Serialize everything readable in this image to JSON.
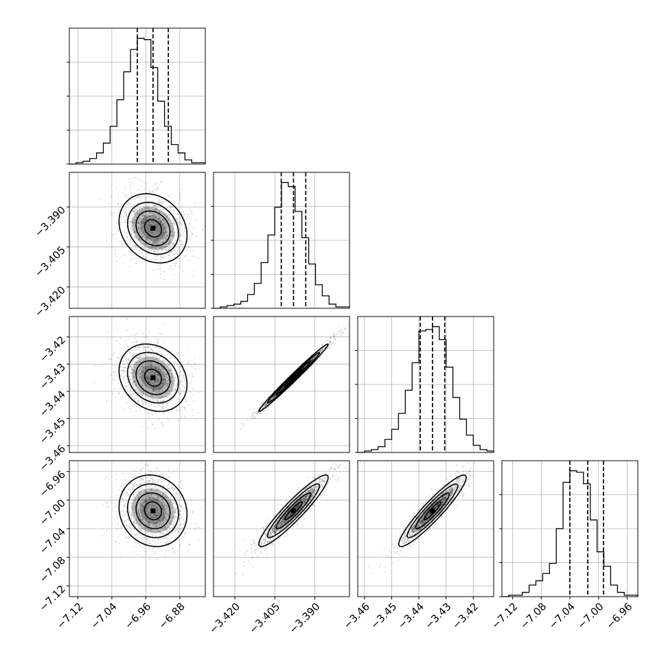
{
  "chart_data": {
    "type": "corner",
    "parameters": [
      {
        "range": [
          -7.14,
          -6.82
        ],
        "ticks": [
          -7.12,
          -7.04,
          -6.96,
          -6.88
        ],
        "tick_labels": [
          "−7.12",
          "−7.04",
          "−6.96",
          "−6.88"
        ],
        "mean": -6.943,
        "sd": 0.04,
        "quantiles": [
          -6.98,
          -6.943,
          -6.907
        ]
      },
      {
        "range": [
          -3.428,
          -3.377
        ],
        "ticks": [
          -3.42,
          -3.405,
          -3.39
        ],
        "tick_labels": [
          "−3.420",
          "−3.405",
          "−3.390"
        ],
        "mean": -3.398,
        "sd": 0.0065,
        "quantiles": [
          -3.4026,
          -3.398,
          -3.3934
        ]
      },
      {
        "range": [
          -3.4625,
          -3.4125
        ],
        "ticks": [
          -3.46,
          -3.45,
          -3.44,
          -3.43,
          -3.42
        ],
        "tick_labels": [
          "−3.46",
          "−3.45",
          "−3.44",
          "−3.43",
          "−3.42"
        ],
        "mean": -3.435,
        "sd": 0.0062,
        "quantiles": [
          -3.4395,
          -3.435,
          -3.4305
        ]
      },
      {
        "range": [
          -7.135,
          -6.945
        ],
        "ticks": [
          -7.12,
          -7.08,
          -7.04,
          -7.0,
          -6.96
        ],
        "tick_labels": [
          "−7.12",
          "−7.08",
          "−7.04",
          "−7.00",
          "−6.96"
        ],
        "mean": -7.015,
        "sd": 0.025,
        "quantiles": [
          -7.04,
          -7.015,
          -6.993
        ]
      }
    ],
    "hist_bins": 20,
    "hist_grid_lines": 3,
    "histograms": [
      [
        0,
        1,
        2,
        4,
        8,
        15,
        27,
        46,
        66,
        82,
        90,
        89,
        69,
        45,
        27,
        14,
        8,
        3,
        1,
        1
      ],
      [
        0,
        1,
        2,
        3,
        5,
        10,
        18,
        33,
        53,
        73,
        91,
        88,
        70,
        51,
        32,
        17,
        9,
        3,
        1,
        1
      ],
      [
        0,
        1,
        2,
        4,
        9,
        16,
        27,
        43,
        62,
        84,
        85,
        87,
        78,
        59,
        38,
        23,
        12,
        5,
        2,
        1
      ],
      [
        0,
        1,
        1,
        3,
        8,
        11,
        16,
        23,
        47,
        79,
        87,
        86,
        78,
        53,
        31,
        21,
        8,
        3,
        1,
        1
      ]
    ],
    "pairs": [
      {
        "x": 0,
        "y": 1,
        "corr": -0.2
      },
      {
        "x": 0,
        "y": 2,
        "corr": -0.2
      },
      {
        "x": 0,
        "y": 3,
        "corr": -0.1
      },
      {
        "x": 1,
        "y": 2,
        "corr": 0.99
      },
      {
        "x": 1,
        "y": 3,
        "corr": 0.93
      },
      {
        "x": 2,
        "y": 3,
        "corr": 0.93
      }
    ],
    "contour_levels": [
      0.5,
      1.0,
      1.5,
      2.0
    ],
    "grid": true,
    "marks": {
      "histogram": "#000000",
      "quantile_lines": "#000000",
      "contours": "#000000",
      "samples": "#000000"
    }
  }
}
